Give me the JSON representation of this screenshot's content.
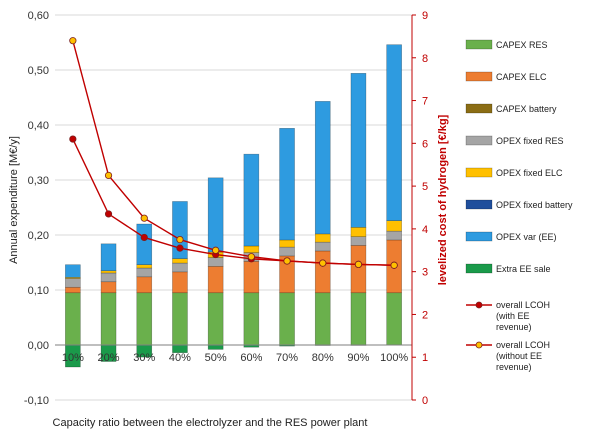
{
  "chart_data": {
    "type": "bar",
    "title": "",
    "xlabel": "Capacity ratio between the electrolyzer and the RES power plant",
    "ylabel": "Annual expenditure [M€/y]",
    "ylabel_right": "levelized cost of hydrogen [€/kg]",
    "ylim": [
      -0.1,
      0.6
    ],
    "y_ticks": [
      "-0,10",
      "0,00",
      "0,10",
      "0,20",
      "0,30",
      "0,40",
      "0,50",
      "0,60"
    ],
    "ylim_right": [
      0,
      9
    ],
    "y_ticks_right": [
      "0",
      "1",
      "2",
      "3",
      "4",
      "5",
      "6",
      "7",
      "8",
      "9"
    ],
    "categories": [
      "10%",
      "20%",
      "30%",
      "40%",
      "50%",
      "60%",
      "70%",
      "80%",
      "90%",
      "100%"
    ],
    "stacked": true,
    "legend_position": "right",
    "series": [
      {
        "name": "CAPEX RES",
        "color": "#6ab04c",
        "values": [
          0.095,
          0.095,
          0.095,
          0.095,
          0.095,
          0.095,
          0.095,
          0.095,
          0.095,
          0.095
        ]
      },
      {
        "name": "CAPEX ELC",
        "color": "#ed7d31",
        "values": [
          0.01,
          0.02,
          0.029,
          0.038,
          0.048,
          0.057,
          0.067,
          0.076,
          0.086,
          0.096
        ]
      },
      {
        "name": "CAPEX battery",
        "color": "#8b6d14",
        "values": [
          0,
          0,
          0,
          0,
          0,
          0,
          0,
          0,
          0,
          0
        ]
      },
      {
        "name": "OPEX fixed RES",
        "color": "#a5a5a5",
        "values": [
          0.016,
          0.016,
          0.016,
          0.016,
          0.016,
          0.016,
          0.016,
          0.016,
          0.016,
          0.016
        ]
      },
      {
        "name": "OPEX fixed ELC",
        "color": "#ffc000",
        "values": [
          0.002,
          0.004,
          0.006,
          0.008,
          0.01,
          0.012,
          0.013,
          0.015,
          0.017,
          0.019
        ]
      },
      {
        "name": "OPEX fixed battery",
        "color": "#1f4e9c",
        "values": [
          0,
          0,
          0,
          0,
          0,
          0,
          0,
          0,
          0,
          0
        ]
      },
      {
        "name": "OPEX var (EE)",
        "color": "#2e9be0",
        "values": [
          0.023,
          0.049,
          0.074,
          0.104,
          0.135,
          0.167,
          0.203,
          0.241,
          0.28,
          0.32
        ]
      },
      {
        "name": "Extra EE sale",
        "color": "#1a9a4a",
        "values": [
          -0.04,
          -0.03,
          -0.022,
          -0.014,
          -0.008,
          -0.004,
          -0.002,
          -0.001,
          -0.0005,
          0
        ]
      }
    ],
    "lines": [
      {
        "name": "overall LCOH (with EE revenue)",
        "color": "#c00000",
        "marker": "#c00000",
        "axis": "right",
        "values": [
          6.1,
          4.35,
          3.8,
          3.55,
          3.4,
          3.3,
          3.25,
          3.2,
          3.17,
          3.15
        ]
      },
      {
        "name": "overall LCOH (without EE revenue)",
        "color": "#c00000",
        "marker": "#ffc000",
        "axis": "right",
        "values": [
          8.4,
          5.25,
          4.25,
          3.75,
          3.5,
          3.35,
          3.25,
          3.2,
          3.17,
          3.15
        ]
      }
    ]
  }
}
